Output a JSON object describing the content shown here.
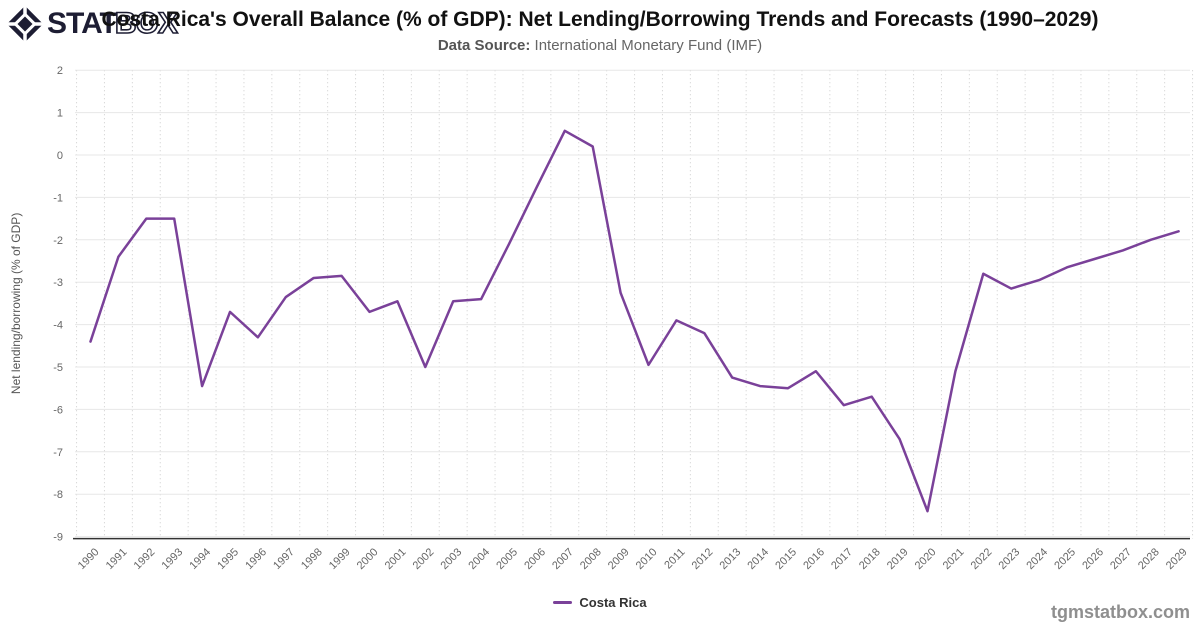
{
  "logo": {
    "stat": "STAT",
    "box": "BOX"
  },
  "header": {
    "title": "Costa Rica's Overall Balance (% of GDP): Net Lending/Borrowing Trends and Forecasts (1990–2029)",
    "subtitle_label": "Data Source:",
    "subtitle_value": " International Monetary Fund (IMF)"
  },
  "chart_data": {
    "type": "line",
    "title": "Costa Rica's Overall Balance (% of GDP): Net Lending/Borrowing Trends and Forecasts (1990–2029)",
    "xlabel": "",
    "ylabel": "Net lending/borrowing (% of GDP)",
    "ylim": [
      -9,
      2
    ],
    "ytick_step": 1,
    "grid": true,
    "legend_position": "bottom",
    "x": [
      1990,
      1991,
      1992,
      1993,
      1994,
      1995,
      1996,
      1997,
      1998,
      1999,
      2000,
      2001,
      2002,
      2003,
      2004,
      2005,
      2006,
      2007,
      2008,
      2009,
      2010,
      2011,
      2012,
      2013,
      2014,
      2015,
      2016,
      2017,
      2018,
      2019,
      2020,
      2021,
      2022,
      2023,
      2024,
      2025,
      2026,
      2027,
      2028,
      2029
    ],
    "series": [
      {
        "name": "Costa Rica",
        "color": "#7a4199",
        "values": [
          -4.4,
          -2.4,
          -1.5,
          -1.5,
          -5.45,
          -3.7,
          -4.3,
          -3.35,
          -2.9,
          -2.85,
          -3.7,
          -3.45,
          -5.0,
          -3.45,
          -3.4,
          -2.1,
          -0.75,
          0.57,
          0.2,
          -3.25,
          -4.95,
          -3.9,
          -4.2,
          -5.25,
          -5.45,
          -5.5,
          -5.1,
          -5.9,
          -5.7,
          -6.7,
          -8.4,
          -5.1,
          -2.8,
          -3.15,
          -2.95,
          -2.65,
          -2.45,
          -2.25,
          -2.0,
          -1.8
        ]
      }
    ],
    "colors": {
      "series": "#7a4199",
      "grid_h": "#e7e7e7",
      "grid_v": "#cccccc",
      "axis_line": "#333333",
      "tick_text": "#666666",
      "axis_title_text": "#555555"
    }
  },
  "legend": {
    "items": [
      {
        "label": "Costa Rica",
        "color": "#7a4199"
      }
    ]
  },
  "footer": {
    "watermark": "tgmstatbox.com"
  }
}
